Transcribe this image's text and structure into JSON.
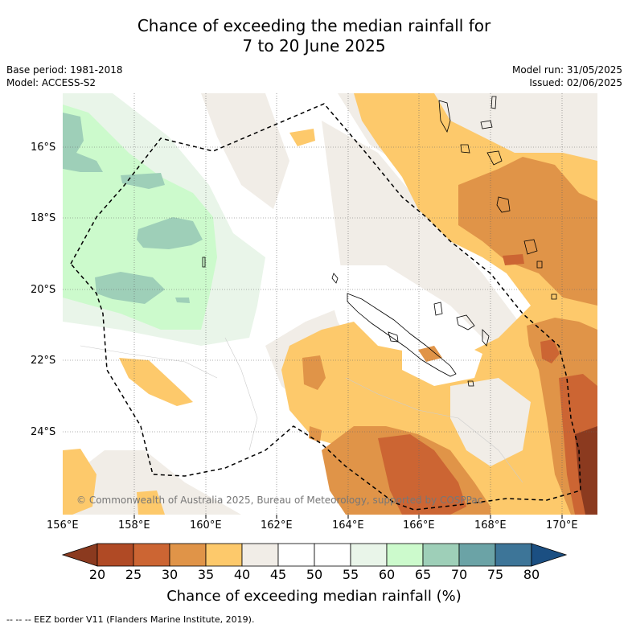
{
  "title_line1": "Chance of exceeding the median rainfall for",
  "title_line2": "7 to 20 June 2025",
  "base_period": "Base period: 1981-2018",
  "model": "Model: ACCESS-S2",
  "model_run": "Model run: 31/05/2025",
  "issued": "Issued: 02/06/2025",
  "copyright": "© Commonwealth of Australia 2025, Bureau of Meteorology, supported by COSPPac",
  "lat_labels": [
    "16°S",
    "18°S",
    "20°S",
    "22°S",
    "24°S"
  ],
  "lon_labels": [
    "156°E",
    "158°E",
    "160°E",
    "162°E",
    "164°E",
    "166°E",
    "168°E",
    "170°E"
  ],
  "colorbar": {
    "labels": [
      "20",
      "25",
      "30",
      "35",
      "40",
      "45",
      "50",
      "55",
      "60",
      "65",
      "70",
      "75",
      "80"
    ],
    "colors": [
      "#8b3a1f",
      "#b04a25",
      "#cc6533",
      "#e09448",
      "#fdc96b",
      "#f1ede7",
      "#ffffff",
      "#ffffff",
      "#e9f5e9",
      "#ccfacc",
      "#9ecfb8",
      "#6ba3a6",
      "#3d7598",
      "#1b4f82"
    ],
    "title": "Chance of exceeding median rainfall (%)"
  },
  "legend": "--  --  -- EEZ border V11 (Flanders Marine Institute, 2019)."
}
